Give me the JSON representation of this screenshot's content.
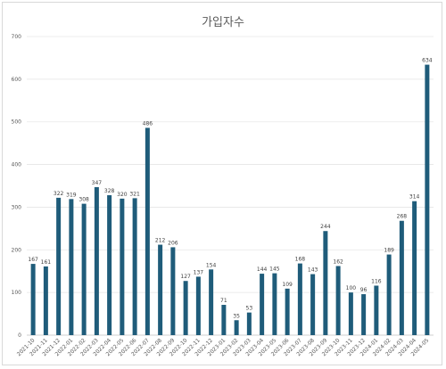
{
  "chart_data": {
    "type": "bar",
    "title": "가입자수",
    "xlabel": "",
    "ylabel": "",
    "ylim": [
      0,
      700
    ],
    "yticks": [
      0,
      100,
      200,
      300,
      400,
      500,
      600,
      700
    ],
    "grid": true,
    "bar_color": "#1f5c7a",
    "categories": [
      "2021-10",
      "2021-11",
      "2021-12",
      "2022-01",
      "2022-02",
      "2022-03",
      "2022-04",
      "2022-05",
      "2022-06",
      "2022-07",
      "2022-08",
      "2022-09",
      "2022-10",
      "2022-11",
      "2022-12",
      "2023-01",
      "2023-02",
      "2023-03",
      "2023-04",
      "2023-05",
      "2023-06",
      "2023-07",
      "2023-08",
      "2023-09",
      "2023-10",
      "2023-11",
      "2023-12",
      "2024-01",
      "2024-02",
      "2024-03",
      "2024-04",
      "2024-05"
    ],
    "values": [
      167,
      161,
      322,
      319,
      308,
      347,
      328,
      320,
      321,
      486,
      212,
      206,
      127,
      137,
      154,
      71,
      35,
      53,
      144,
      145,
      109,
      168,
      143,
      244,
      162,
      100,
      96,
      116,
      189,
      268,
      314,
      634
    ]
  }
}
